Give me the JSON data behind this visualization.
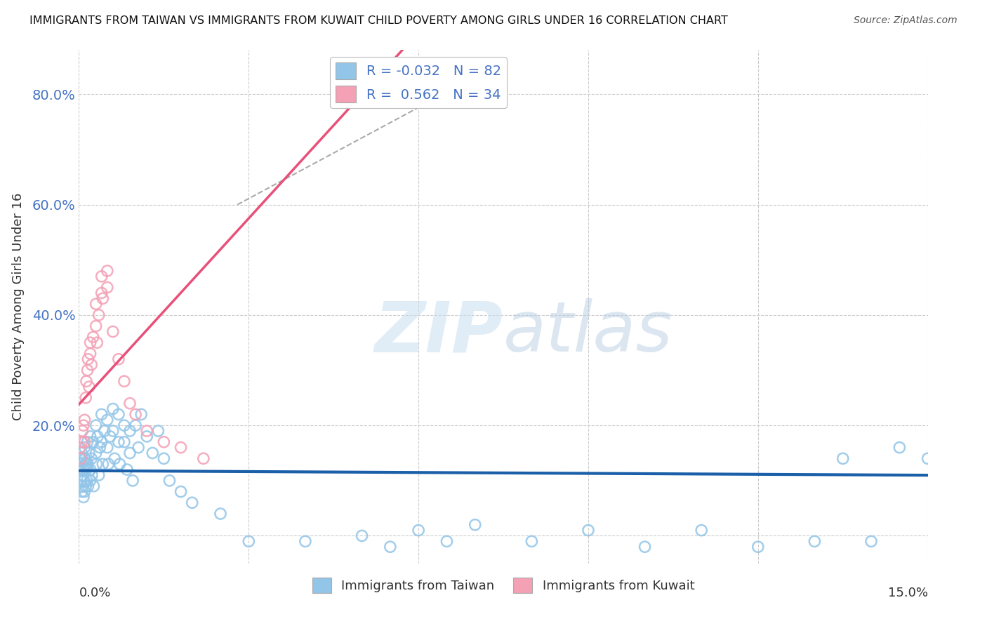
{
  "title": "IMMIGRANTS FROM TAIWAN VS IMMIGRANTS FROM KUWAIT CHILD POVERTY AMONG GIRLS UNDER 16 CORRELATION CHART",
  "source": "Source: ZipAtlas.com",
  "ylabel": "Child Poverty Among Girls Under 16",
  "y_ticks": [
    0.0,
    0.2,
    0.4,
    0.6,
    0.8
  ],
  "y_tick_labels": [
    "",
    "20.0%",
    "40.0%",
    "60.0%",
    "80.0%"
  ],
  "x_ticks": [
    0.0,
    0.03,
    0.06,
    0.09,
    0.12,
    0.15
  ],
  "xlim": [
    0.0,
    0.15
  ],
  "ylim": [
    -0.05,
    0.88
  ],
  "taiwan_R": -0.032,
  "taiwan_N": 82,
  "kuwait_R": 0.562,
  "kuwait_N": 34,
  "taiwan_color": "#92C5E8",
  "kuwait_color": "#F4A0B5",
  "taiwan_line_color": "#1A5FA8",
  "kuwait_line_color": "#E8507A",
  "taiwan_legend": "Immigrants from Taiwan",
  "kuwait_legend": "Immigrants from Kuwait",
  "watermark_zip": "ZIP",
  "watermark_atlas": "atlas",
  "background_color": "#FFFFFF",
  "grid_color": "#CCCCCC",
  "taiwan_x": [
    0.0002,
    0.0003,
    0.0004,
    0.0005,
    0.0005,
    0.0006,
    0.0007,
    0.0008,
    0.0008,
    0.0009,
    0.001,
    0.001,
    0.001,
    0.0012,
    0.0012,
    0.0013,
    0.0014,
    0.0015,
    0.0015,
    0.0016,
    0.0018,
    0.002,
    0.002,
    0.002,
    0.0022,
    0.0023,
    0.0025,
    0.0026,
    0.003,
    0.003,
    0.0031,
    0.0033,
    0.0035,
    0.0037,
    0.004,
    0.004,
    0.0042,
    0.0045,
    0.005,
    0.005,
    0.0052,
    0.0055,
    0.006,
    0.006,
    0.0063,
    0.007,
    0.007,
    0.0072,
    0.008,
    0.008,
    0.0085,
    0.009,
    0.009,
    0.0095,
    0.01,
    0.0105,
    0.011,
    0.012,
    0.013,
    0.014,
    0.015,
    0.016,
    0.018,
    0.02,
    0.025,
    0.03,
    0.04,
    0.05,
    0.055,
    0.06,
    0.065,
    0.07,
    0.08,
    0.09,
    0.1,
    0.11,
    0.12,
    0.13,
    0.135,
    0.14,
    0.145,
    0.15
  ],
  "taiwan_y": [
    0.12,
    0.14,
    0.1,
    0.08,
    0.15,
    0.09,
    0.11,
    0.12,
    0.07,
    0.1,
    0.14,
    0.16,
    0.08,
    0.13,
    0.09,
    0.12,
    0.1,
    0.17,
    0.13,
    0.09,
    0.15,
    0.18,
    0.12,
    0.1,
    0.14,
    0.11,
    0.17,
    0.09,
    0.2,
    0.15,
    0.13,
    0.18,
    0.11,
    0.16,
    0.22,
    0.17,
    0.13,
    0.19,
    0.21,
    0.16,
    0.13,
    0.18,
    0.23,
    0.19,
    0.14,
    0.22,
    0.17,
    0.13,
    0.2,
    0.17,
    0.12,
    0.19,
    0.15,
    0.1,
    0.2,
    0.16,
    0.22,
    0.18,
    0.15,
    0.19,
    0.14,
    0.1,
    0.08,
    0.06,
    0.04,
    -0.01,
    -0.01,
    0.0,
    -0.02,
    0.01,
    -0.01,
    0.02,
    -0.01,
    0.01,
    -0.02,
    0.01,
    -0.02,
    -0.01,
    0.14,
    -0.01,
    0.16,
    0.14
  ],
  "kuwait_x": [
    0.0002,
    0.0003,
    0.0005,
    0.0006,
    0.0008,
    0.001,
    0.001,
    0.0012,
    0.0013,
    0.0015,
    0.0016,
    0.0018,
    0.002,
    0.002,
    0.0022,
    0.0025,
    0.003,
    0.003,
    0.0032,
    0.0035,
    0.004,
    0.004,
    0.0042,
    0.005,
    0.005,
    0.006,
    0.007,
    0.008,
    0.009,
    0.01,
    0.012,
    0.015,
    0.018,
    0.022
  ],
  "kuwait_y": [
    0.16,
    0.14,
    0.17,
    0.19,
    0.2,
    0.21,
    0.17,
    0.25,
    0.28,
    0.3,
    0.32,
    0.27,
    0.33,
    0.35,
    0.31,
    0.36,
    0.38,
    0.42,
    0.35,
    0.4,
    0.44,
    0.47,
    0.43,
    0.48,
    0.45,
    0.37,
    0.32,
    0.28,
    0.24,
    0.22,
    0.19,
    0.17,
    0.16,
    0.14
  ]
}
